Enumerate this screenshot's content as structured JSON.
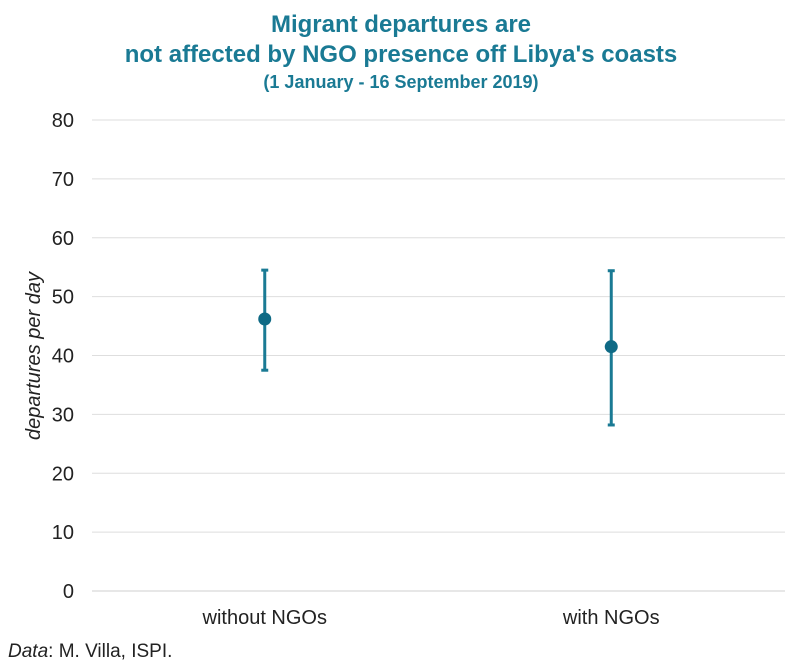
{
  "chart_data": {
    "type": "scatter",
    "title_line1": "Migrant departures are",
    "title_line2": "not affected by NGO presence off Libya's coasts",
    "subtitle": "(1 January - 16 September 2019)",
    "ylabel": "departures per day",
    "xlabel": "",
    "categories": [
      "without NGOs",
      "with NGOs"
    ],
    "values": [
      46.2,
      41.5
    ],
    "error_low": [
      37.5,
      28.2
    ],
    "error_high": [
      54.5,
      54.4
    ],
    "ylim": [
      0,
      80
    ],
    "yticks": [
      "0",
      "10",
      "20",
      "30",
      "40",
      "50",
      "60",
      "70",
      "80"
    ],
    "grid": true,
    "marker_color": "#0f6a85",
    "errorbar_color": "#1a7a94",
    "title_color": "#1a7a94"
  },
  "source": {
    "label": "Data",
    "text": ": M. Villa, ISPI."
  }
}
